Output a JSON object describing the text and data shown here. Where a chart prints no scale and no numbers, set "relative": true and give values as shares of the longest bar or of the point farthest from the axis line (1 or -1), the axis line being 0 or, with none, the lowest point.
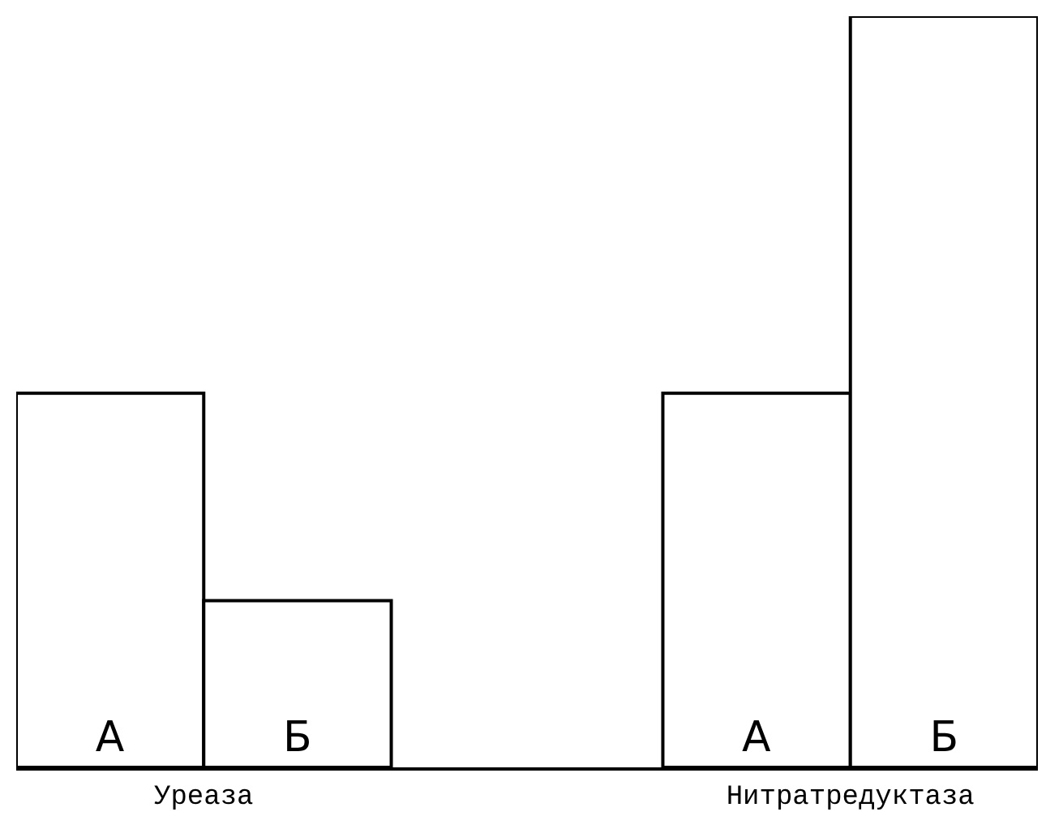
{
  "chart_data": {
    "type": "bar",
    "relative": true,
    "categories": [
      "Уреаза",
      "Нитратредуктаза"
    ],
    "series": [
      {
        "name": "А",
        "color": "#ffffff",
        "values": [
          0.498,
          0.498
        ]
      },
      {
        "name": "Б",
        "color": "#ffffff",
        "values": [
          0.222,
          1
        ]
      }
    ],
    "legend": false
  }
}
